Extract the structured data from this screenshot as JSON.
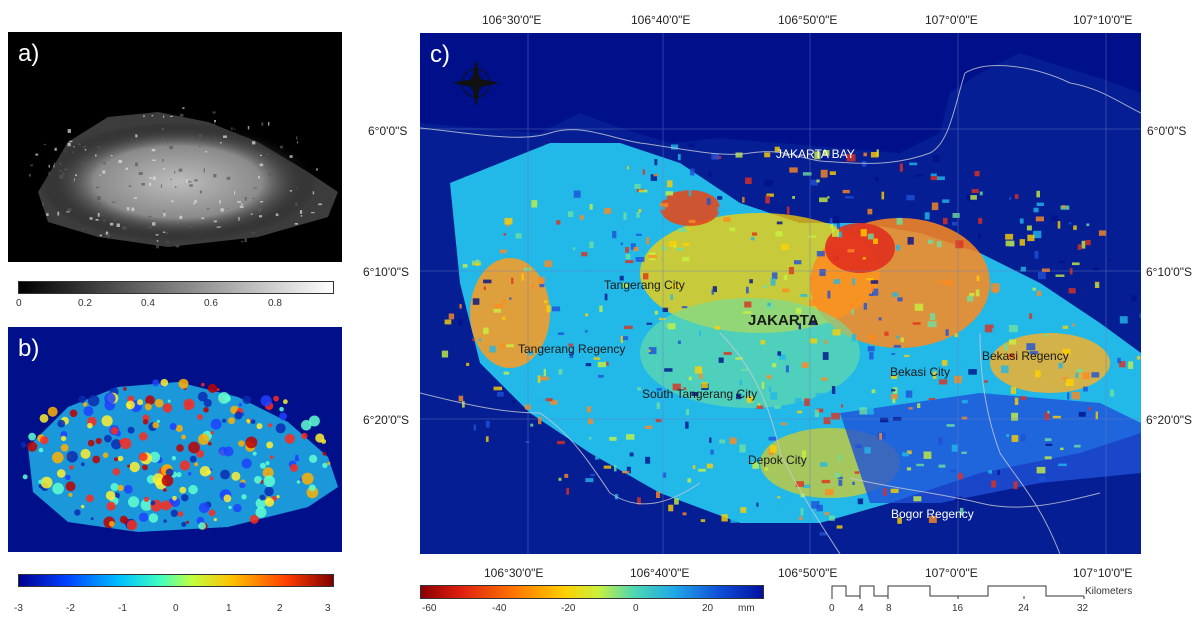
{
  "panels": {
    "a": {
      "label": "a)"
    },
    "b": {
      "label": "b)"
    },
    "c": {
      "label": "c)"
    }
  },
  "colorbar_a": {
    "ticks": [
      "0",
      "0.2",
      "0.4",
      "0.6",
      "0.8"
    ]
  },
  "colorbar_b": {
    "ticks": [
      "-3",
      "-2",
      "-1",
      "0",
      "1",
      "2",
      "3"
    ]
  },
  "colorbar_c": {
    "ticks": [
      "-60",
      "-40",
      "-20",
      "0",
      "20"
    ],
    "unit": "mm"
  },
  "map": {
    "lon_top": [
      "106°30'0\"E",
      "106°40'0\"E",
      "106°50'0\"E",
      "107°0'0\"E",
      "107°10'0\"E"
    ],
    "lon_bottom": [
      "106°30'0\"E",
      "106°40'0\"E",
      "106°50'0\"E",
      "107°0'0\"E",
      "107°10'0\"E"
    ],
    "lat_left": [
      "6°0'0\"S",
      "6°10'0\"S",
      "6°20'0\"S"
    ],
    "lat_right": [
      "6°0'0\"S",
      "6°10'0\"S",
      "6°20'0\"S"
    ],
    "places": {
      "bay": "JAKARTA BAY",
      "jakarta": "JAKARTA",
      "tangerang_city": "Tangerang City",
      "tangerang_regency": "Tangerang Regency",
      "south_tangerang": "South Tangerang City",
      "bekasi_city": "Bekasi City",
      "bekasi_regency": "Bekasi Regency",
      "depok": "Depok City",
      "bogor": "Bogor Regency"
    }
  },
  "scalebar": {
    "labels": [
      "0",
      "4",
      "8",
      "16",
      "24",
      "32"
    ],
    "unit": "Kilometers"
  },
  "colors": {
    "ocean": "#00108a",
    "land_blue": "#0a2c9c"
  }
}
